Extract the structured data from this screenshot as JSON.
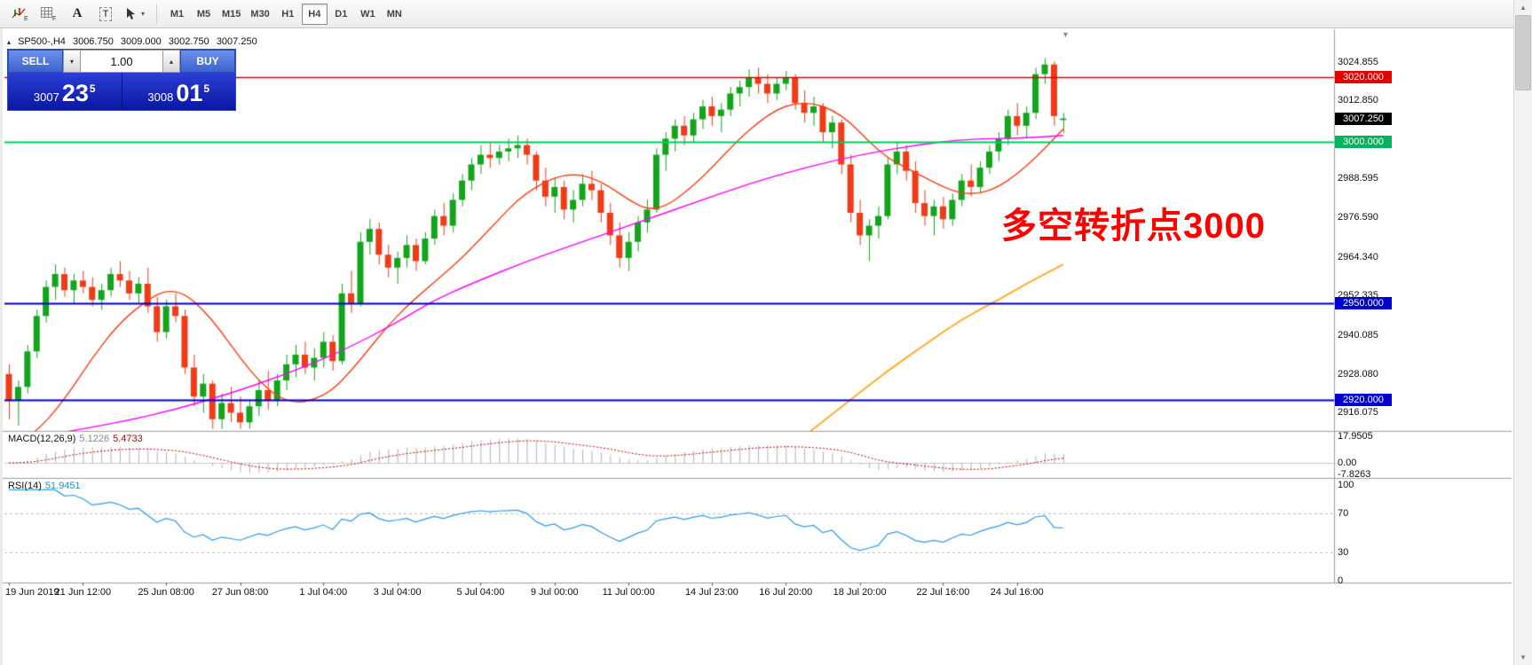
{
  "toolbar": {
    "tool_icons": [
      "indicators-chart-icon",
      "grid-icon",
      "text-label-icon",
      "text-box-icon",
      "crosshair-cursor-icon"
    ],
    "timeframes": [
      "M1",
      "M5",
      "M15",
      "M30",
      "H1",
      "H4",
      "D1",
      "W1",
      "MN"
    ],
    "active_timeframe": "H4"
  },
  "chart_header": {
    "symbol": "SP500-,H4",
    "open": "3006.750",
    "high": "3009.000",
    "low": "3002.750",
    "close": "3007.250",
    "collapse_icon": "▴"
  },
  "trade_panel": {
    "sell_label": "SELL",
    "buy_label": "BUY",
    "volume": "1.00",
    "bid_big": "3007",
    "bid_frac": "23",
    "bid_sup": "5",
    "ask_big": "3008",
    "ask_frac": "01",
    "ask_sup": "5"
  },
  "annotation": {
    "text": "多空转折点3000",
    "color": "#fe0000"
  },
  "price_axis": {
    "labels": [
      3024.855,
      3012.85,
      2988.595,
      2976.59,
      2964.34,
      2952.335,
      2940.085,
      2928.08,
      2916.075
    ],
    "badges": [
      {
        "value": "3020.000",
        "color": "#e00000"
      },
      {
        "value": "3007.250",
        "color": "#000000"
      },
      {
        "value": "3000.000",
        "color": "#00b35c"
      },
      {
        "value": "2950.000",
        "color": "#0000cd"
      },
      {
        "value": "2920.000",
        "color": "#0000cd"
      }
    ]
  },
  "macd_panel": {
    "label": "MACD(12,26,9)",
    "main_value": "5.1226",
    "signal_value": "5.4733",
    "axis": [
      "17.9505",
      "0.00",
      "-7.8263"
    ]
  },
  "rsi_panel": {
    "label": "RSI(14)",
    "value": "51.9451",
    "axis": [
      "100",
      "70",
      "30",
      "0"
    ]
  },
  "chart_data": {
    "type": "candlestick",
    "symbol": "SP500-",
    "timeframe": "H4",
    "title": "SP500-,H4 3006.750 3009.000 3002.750 3007.250",
    "price_range": [
      2912,
      3033
    ],
    "up_color": "#12a51b",
    "down_color": "#f03b17",
    "hlines": [
      {
        "price": 3020,
        "color": "#e00000",
        "width": 1.3
      },
      {
        "price": 3000,
        "color": "#00cb61",
        "width": 2
      },
      {
        "price": 2950,
        "color": "#0000c8",
        "width": 2
      },
      {
        "price": 2920,
        "color": "#0000c8",
        "width": 2
      }
    ],
    "candles": [
      [
        2928,
        2931,
        2914,
        2920
      ],
      [
        2920,
        2926,
        2912,
        2924
      ],
      [
        2924,
        2937,
        2922,
        2935
      ],
      [
        2935,
        2948,
        2933,
        2946
      ],
      [
        2946,
        2957,
        2944,
        2955
      ],
      [
        2955,
        2962,
        2951,
        2959
      ],
      [
        2959,
        2961,
        2952,
        2954
      ],
      [
        2954,
        2959,
        2950,
        2957
      ],
      [
        2957,
        2960,
        2953,
        2955
      ],
      [
        2955,
        2958,
        2949,
        2951
      ],
      [
        2951,
        2956,
        2948,
        2954
      ],
      [
        2954,
        2961,
        2952,
        2959
      ],
      [
        2959,
        2963,
        2955,
        2957
      ],
      [
        2957,
        2960,
        2951,
        2953
      ],
      [
        2953,
        2958,
        2950,
        2956
      ],
      [
        2956,
        2961,
        2947,
        2949
      ],
      [
        2949,
        2952,
        2938,
        2941
      ],
      [
        2941,
        2951,
        2939,
        2949
      ],
      [
        2949,
        2953,
        2944,
        2946
      ],
      [
        2946,
        2948,
        2928,
        2930
      ],
      [
        2930,
        2934,
        2918,
        2921
      ],
      [
        2921,
        2928,
        2916,
        2925
      ],
      [
        2925,
        2926,
        2911,
        2914
      ],
      [
        2914,
        2922,
        2911,
        2919
      ],
      [
        2919,
        2924,
        2913,
        2916
      ],
      [
        2916,
        2921,
        2911,
        2913
      ],
      [
        2913,
        2920,
        2911,
        2918
      ],
      [
        2918,
        2926,
        2915,
        2923
      ],
      [
        2923,
        2929,
        2917,
        2920
      ],
      [
        2920,
        2928,
        2918,
        2926
      ],
      [
        2926,
        2934,
        2923,
        2931
      ],
      [
        2931,
        2937,
        2927,
        2934
      ],
      [
        2934,
        2938,
        2928,
        2930
      ],
      [
        2930,
        2936,
        2926,
        2933
      ],
      [
        2933,
        2941,
        2930,
        2938
      ],
      [
        2938,
        2940,
        2929,
        2932
      ],
      [
        2932,
        2956,
        2931,
        2953
      ],
      [
        2953,
        2960,
        2947,
        2950
      ],
      [
        2950,
        2972,
        2949,
        2969
      ],
      [
        2969,
        2976,
        2965,
        2973
      ],
      [
        2973,
        2975,
        2962,
        2965
      ],
      [
        2965,
        2968,
        2958,
        2961
      ],
      [
        2961,
        2966,
        2956,
        2964
      ],
      [
        2964,
        2971,
        2961,
        2968
      ],
      [
        2968,
        2970,
        2960,
        2963
      ],
      [
        2963,
        2972,
        2962,
        2970
      ],
      [
        2970,
        2979,
        2968,
        2977
      ],
      [
        2977,
        2981,
        2971,
        2974
      ],
      [
        2974,
        2984,
        2972,
        2982
      ],
      [
        2982,
        2990,
        2980,
        2988
      ],
      [
        2988,
        2995,
        2985,
        2993
      ],
      [
        2993,
        2999,
        2990,
        2996
      ],
      [
        2996,
        3000,
        2992,
        2995
      ],
      [
        2995,
        2999,
        2993,
        2997
      ],
      [
        2997,
        3001,
        2994,
        2998
      ],
      [
        2998,
        3002,
        2995,
        2999
      ],
      [
        2999,
        3001,
        2993,
        2996
      ],
      [
        2996,
        2997,
        2985,
        2988
      ],
      [
        2988,
        2992,
        2980,
        2983
      ],
      [
        2983,
        2989,
        2978,
        2986
      ],
      [
        2986,
        2988,
        2976,
        2979
      ],
      [
        2979,
        2985,
        2975,
        2982
      ],
      [
        2982,
        2990,
        2980,
        2987
      ],
      [
        2987,
        2991,
        2982,
        2985
      ],
      [
        2985,
        2987,
        2975,
        2978
      ],
      [
        2978,
        2981,
        2968,
        2971
      ],
      [
        2971,
        2975,
        2961,
        2964
      ],
      [
        2964,
        2972,
        2960,
        2969
      ],
      [
        2969,
        2977,
        2966,
        2975
      ],
      [
        2975,
        2982,
        2972,
        2979
      ],
      [
        2979,
        2998,
        2978,
        2996
      ],
      [
        2996,
        3003,
        2991,
        3001
      ],
      [
        3001,
        3007,
        2997,
        3005
      ],
      [
        3005,
        3008,
        2999,
        3002
      ],
      [
        3002,
        3009,
        3000,
        3007
      ],
      [
        3007,
        3013,
        3004,
        3011
      ],
      [
        3011,
        3014,
        3005,
        3008
      ],
      [
        3008,
        3012,
        3003,
        3010
      ],
      [
        3010,
        3017,
        3008,
        3015
      ],
      [
        3015,
        3019,
        3011,
        3017
      ],
      [
        3017,
        3022.5,
        3014,
        3020
      ],
      [
        3020,
        3023,
        3015,
        3018
      ],
      [
        3018,
        3021,
        3012,
        3015
      ],
      [
        3015,
        3020,
        3013,
        3018
      ],
      [
        3018,
        3022,
        3016,
        3020
      ],
      [
        3020,
        3021,
        3010,
        3012
      ],
      [
        3012,
        3016,
        3006,
        3009
      ],
      [
        3009,
        3014,
        3005,
        3011
      ],
      [
        3011,
        3012,
        3000,
        3003
      ],
      [
        3003,
        3008,
        2998,
        3006
      ],
      [
        3006,
        3007,
        2990,
        2993
      ],
      [
        2993,
        2996,
        2975,
        2978
      ],
      [
        2978,
        2982,
        2968,
        2971
      ],
      [
        2971,
        2976,
        2963,
        2974
      ],
      [
        2974,
        2980,
        2970,
        2977
      ],
      [
        2977,
        2995,
        2976,
        2993
      ],
      [
        2993,
        3000,
        2990,
        2997
      ],
      [
        2997,
        2999,
        2988,
        2991
      ],
      [
        2991,
        2994,
        2978,
        2981
      ],
      [
        2981,
        2985,
        2974,
        2977
      ],
      [
        2977,
        2982,
        2971,
        2980
      ],
      [
        2980,
        2983,
        2973,
        2976
      ],
      [
        2976,
        2984,
        2974,
        2982
      ],
      [
        2982,
        2990,
        2980,
        2988
      ],
      [
        2988,
        2993,
        2983,
        2986
      ],
      [
        2986,
        2994,
        2984,
        2992
      ],
      [
        2992,
        2999,
        2990,
        2997
      ],
      [
        2997,
        3003,
        2994,
        3001
      ],
      [
        3001,
        3010,
        2999,
        3008
      ],
      [
        3008,
        3012,
        3002,
        3005
      ],
      [
        3005,
        3011,
        3001,
        3009
      ],
      [
        3009,
        3023,
        3007,
        3021
      ],
      [
        3021,
        3025.86,
        3018,
        3024
      ],
      [
        3024,
        3025,
        3005,
        3008
      ],
      [
        3006.75,
        3009,
        3002.75,
        3007.25
      ]
    ],
    "overlays": [
      {
        "name": "ma-fast",
        "color": "#ff3d12",
        "width": 1.4,
        "points": [
          [
            0,
            2904
          ],
          [
            3,
            2910
          ],
          [
            6,
            2920
          ],
          [
            9,
            2933
          ],
          [
            12,
            2944
          ],
          [
            15,
            2951
          ],
          [
            17,
            2954
          ],
          [
            19,
            2953
          ],
          [
            21,
            2948
          ],
          [
            23,
            2941
          ],
          [
            25,
            2933
          ],
          [
            27,
            2926
          ],
          [
            29,
            2921
          ],
          [
            31,
            2919
          ],
          [
            33,
            2920
          ],
          [
            35,
            2923
          ],
          [
            37,
            2929
          ],
          [
            39,
            2936
          ],
          [
            41,
            2943
          ],
          [
            43,
            2949
          ],
          [
            45,
            2954
          ],
          [
            47,
            2959
          ],
          [
            49,
            2964
          ],
          [
            51,
            2970
          ],
          [
            53,
            2976
          ],
          [
            55,
            2982
          ],
          [
            57,
            2986
          ],
          [
            59,
            2989
          ],
          [
            61,
            2990
          ],
          [
            63,
            2989
          ],
          [
            65,
            2986
          ],
          [
            67,
            2982
          ],
          [
            69,
            2979
          ],
          [
            71,
            2980
          ],
          [
            73,
            2984
          ],
          [
            75,
            2989
          ],
          [
            77,
            2995
          ],
          [
            79,
            3001
          ],
          [
            81,
            3006
          ],
          [
            83,
            3010
          ],
          [
            85,
            3012
          ],
          [
            87,
            3012
          ],
          [
            89,
            3010
          ],
          [
            91,
            3006
          ],
          [
            93,
            3000
          ],
          [
            95,
            2995
          ],
          [
            97,
            2992
          ],
          [
            99,
            2989
          ],
          [
            101,
            2986
          ],
          [
            103,
            2984
          ],
          [
            105,
            2984
          ],
          [
            107,
            2986
          ],
          [
            109,
            2990
          ],
          [
            111,
            2995
          ],
          [
            113,
            3001
          ],
          [
            114,
            3004
          ]
        ]
      },
      {
        "name": "ma-mid",
        "color": "#ff00ff",
        "width": 1.4,
        "points": [
          [
            6,
            2910
          ],
          [
            12,
            2913
          ],
          [
            18,
            2917
          ],
          [
            24,
            2922
          ],
          [
            30,
            2928
          ],
          [
            36,
            2935
          ],
          [
            42,
            2944
          ],
          [
            46,
            2951
          ],
          [
            50,
            2956
          ],
          [
            56,
            2963
          ],
          [
            62,
            2969
          ],
          [
            68,
            2975
          ],
          [
            74,
            2981
          ],
          [
            80,
            2987
          ],
          [
            86,
            2992
          ],
          [
            92,
            2996
          ],
          [
            98,
            2999
          ],
          [
            104,
            3001
          ],
          [
            109,
            3001
          ],
          [
            114,
            3002
          ]
        ]
      },
      {
        "name": "ma-slow",
        "color": "#ffae2e",
        "width": 2,
        "points": [
          [
            71,
            2876
          ],
          [
            75,
            2884
          ],
          [
            79,
            2893
          ],
          [
            83,
            2902
          ],
          [
            87,
            2911
          ],
          [
            91,
            2920
          ],
          [
            95,
            2929
          ],
          [
            99,
            2937
          ],
          [
            103,
            2945
          ],
          [
            107,
            2951
          ],
          [
            110,
            2956
          ],
          [
            114,
            2962
          ]
        ]
      }
    ],
    "time_ticks": [
      {
        "label": "19 Jun 2019",
        "bar": 0
      },
      {
        "label": "21 Jun 12:00",
        "bar": 8
      },
      {
        "label": "25 Jun 08:00",
        "bar": 17
      },
      {
        "label": "27 Jun 08:00",
        "bar": 25
      },
      {
        "label": "1 Jul 04:00",
        "bar": 34
      },
      {
        "label": "3 Jul 04:00",
        "bar": 42
      },
      {
        "label": "5 Jul 04:00",
        "bar": 51
      },
      {
        "label": "9 Jul 00:00",
        "bar": 59
      },
      {
        "label": "11 Jul 00:00",
        "bar": 67
      },
      {
        "label": "14 Jul 23:00",
        "bar": 76
      },
      {
        "label": "16 Jul 20:00",
        "bar": 84
      },
      {
        "label": "18 Jul 20:00",
        "bar": 92
      },
      {
        "label": "22 Jul 16:00",
        "bar": 101
      },
      {
        "label": "24 Jul 16:00",
        "bar": 109
      }
    ],
    "macd": {
      "params": [
        12,
        26,
        9
      ],
      "axis_max": 17.9505,
      "axis_min": -7.8263,
      "last_main": 5.1226,
      "last_signal": 5.4733,
      "hist_color": "#b2b2b2",
      "signal_color": "#d40000"
    },
    "rsi": {
      "period": 14,
      "last": 51.9451,
      "levels": [
        70,
        30
      ],
      "line_color": "#2f9be8"
    }
  }
}
